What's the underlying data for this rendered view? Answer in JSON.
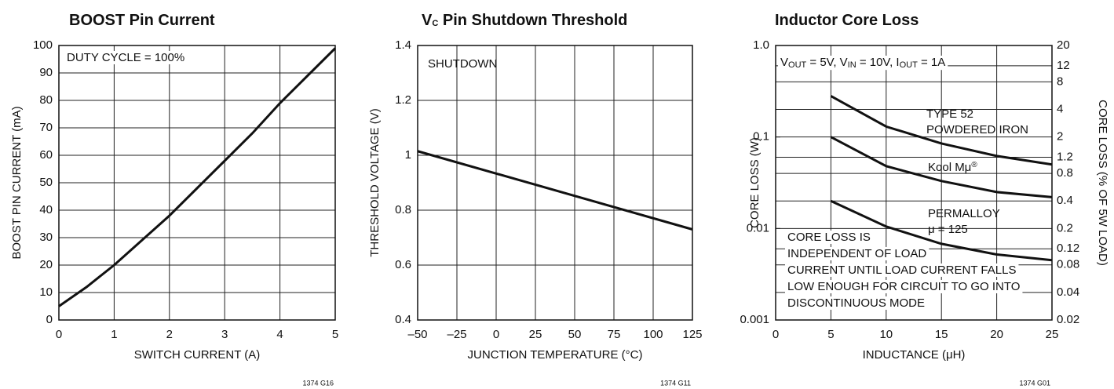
{
  "chart_data": [
    {
      "type": "line",
      "title": [
        "BOOST Pin Current"
      ],
      "xlabel": "SWITCH CURRENT (A)",
      "ylabel": "BOOST PIN CURRENT (mA)",
      "annotations": [
        [
          "DUTY CYCLE = 100%"
        ]
      ],
      "footnote": "1374 G16",
      "xlim": [
        0,
        5
      ],
      "xticks": [
        0,
        1,
        2,
        3,
        4,
        5
      ],
      "ylim": [
        0,
        100
      ],
      "yticks": [
        0,
        10,
        20,
        30,
        40,
        50,
        60,
        70,
        80,
        90,
        100
      ],
      "grid": true,
      "series": [
        {
          "color": "#111111",
          "x": [
            0,
            0.5,
            1,
            1.5,
            2,
            2.5,
            3,
            3.5,
            4,
            4.5,
            5
          ],
          "values": [
            5,
            12,
            20,
            29,
            38,
            48,
            58,
            68,
            79,
            89,
            99
          ]
        }
      ]
    },
    {
      "type": "line",
      "title": [
        "V",
        "C",
        " Pin Shutdown Threshold"
      ],
      "xlabel": "JUNCTION TEMPERATURE (°C)",
      "ylabel": "THRESHOLD VOLTAGE (V)",
      "annotations": [
        [
          "SHUTDOWN"
        ]
      ],
      "footnote": "1374 G11",
      "xlim": [
        -50,
        125
      ],
      "xticks": [
        {
          "value": -50,
          "label": "–50"
        },
        {
          "value": -25,
          "label": "–25"
        },
        0,
        25,
        50,
        75,
        100,
        125
      ],
      "ylim": [
        0.4,
        1.4
      ],
      "yticks": [
        0.4,
        0.6,
        0.8,
        1.0,
        1.2,
        1.4
      ],
      "grid": true,
      "series": [
        {
          "color": "#111111",
          "x": [
            -50,
            125
          ],
          "values": [
            1.015,
            0.73
          ]
        }
      ]
    },
    {
      "type": "line",
      "log_y": true,
      "title": [
        "Inductor Core Loss"
      ],
      "xlabel": "INDUCTANCE (μH)",
      "ylabel": "CORE LOSS (W)",
      "y2label": "CORE LOSS (% OF 5W LOAD)",
      "annotations": [
        [
          "V",
          "OUT",
          " = 5V, V",
          "IN",
          " = 10V, I",
          "OUT",
          " = 1A"
        ],
        [
          "TYPE 52"
        ],
        [
          "POWDERED IRON"
        ],
        [
          "Kool Mμ",
          "®"
        ],
        [
          "PERMALLOY"
        ],
        [
          "μ = 125"
        ],
        [
          "CORE LOSS IS"
        ],
        [
          "INDEPENDENT OF LOAD"
        ],
        [
          "CURRENT UNTIL LOAD CURRENT FALLS"
        ],
        [
          "LOW ENOUGH FOR CIRCUIT TO GO INTO"
        ],
        [
          "DISCONTINUOUS MODE"
        ]
      ],
      "footnote": "1374 G01",
      "xlim": [
        0,
        25
      ],
      "xticks": [
        0,
        5,
        10,
        15,
        20,
        25
      ],
      "ylim": [
        0.001,
        1.0
      ],
      "yticks": [
        0.001,
        0.01,
        0.1,
        {
          "value": 1.0,
          "label": "1.0"
        }
      ],
      "y2lim": [
        0.02,
        20
      ],
      "y2ticks": [
        0.02,
        0.04,
        0.08,
        0.12,
        0.2,
        0.4,
        0.8,
        1.2,
        2,
        4,
        8,
        12,
        20
      ],
      "grid": true,
      "series": [
        {
          "color": "#111111",
          "x": [
            5,
            10,
            15,
            20,
            25
          ],
          "values": [
            0.28,
            0.13,
            0.085,
            0.062,
            0.05
          ]
        },
        {
          "color": "#111111",
          "x": [
            5,
            10,
            15,
            20,
            25
          ],
          "values": [
            0.1,
            0.048,
            0.033,
            0.025,
            0.022
          ]
        },
        {
          "color": "#111111",
          "x": [
            5,
            10,
            15,
            20,
            25
          ],
          "values": [
            0.02,
            0.0105,
            0.0068,
            0.0052,
            0.0045
          ]
        }
      ]
    }
  ]
}
